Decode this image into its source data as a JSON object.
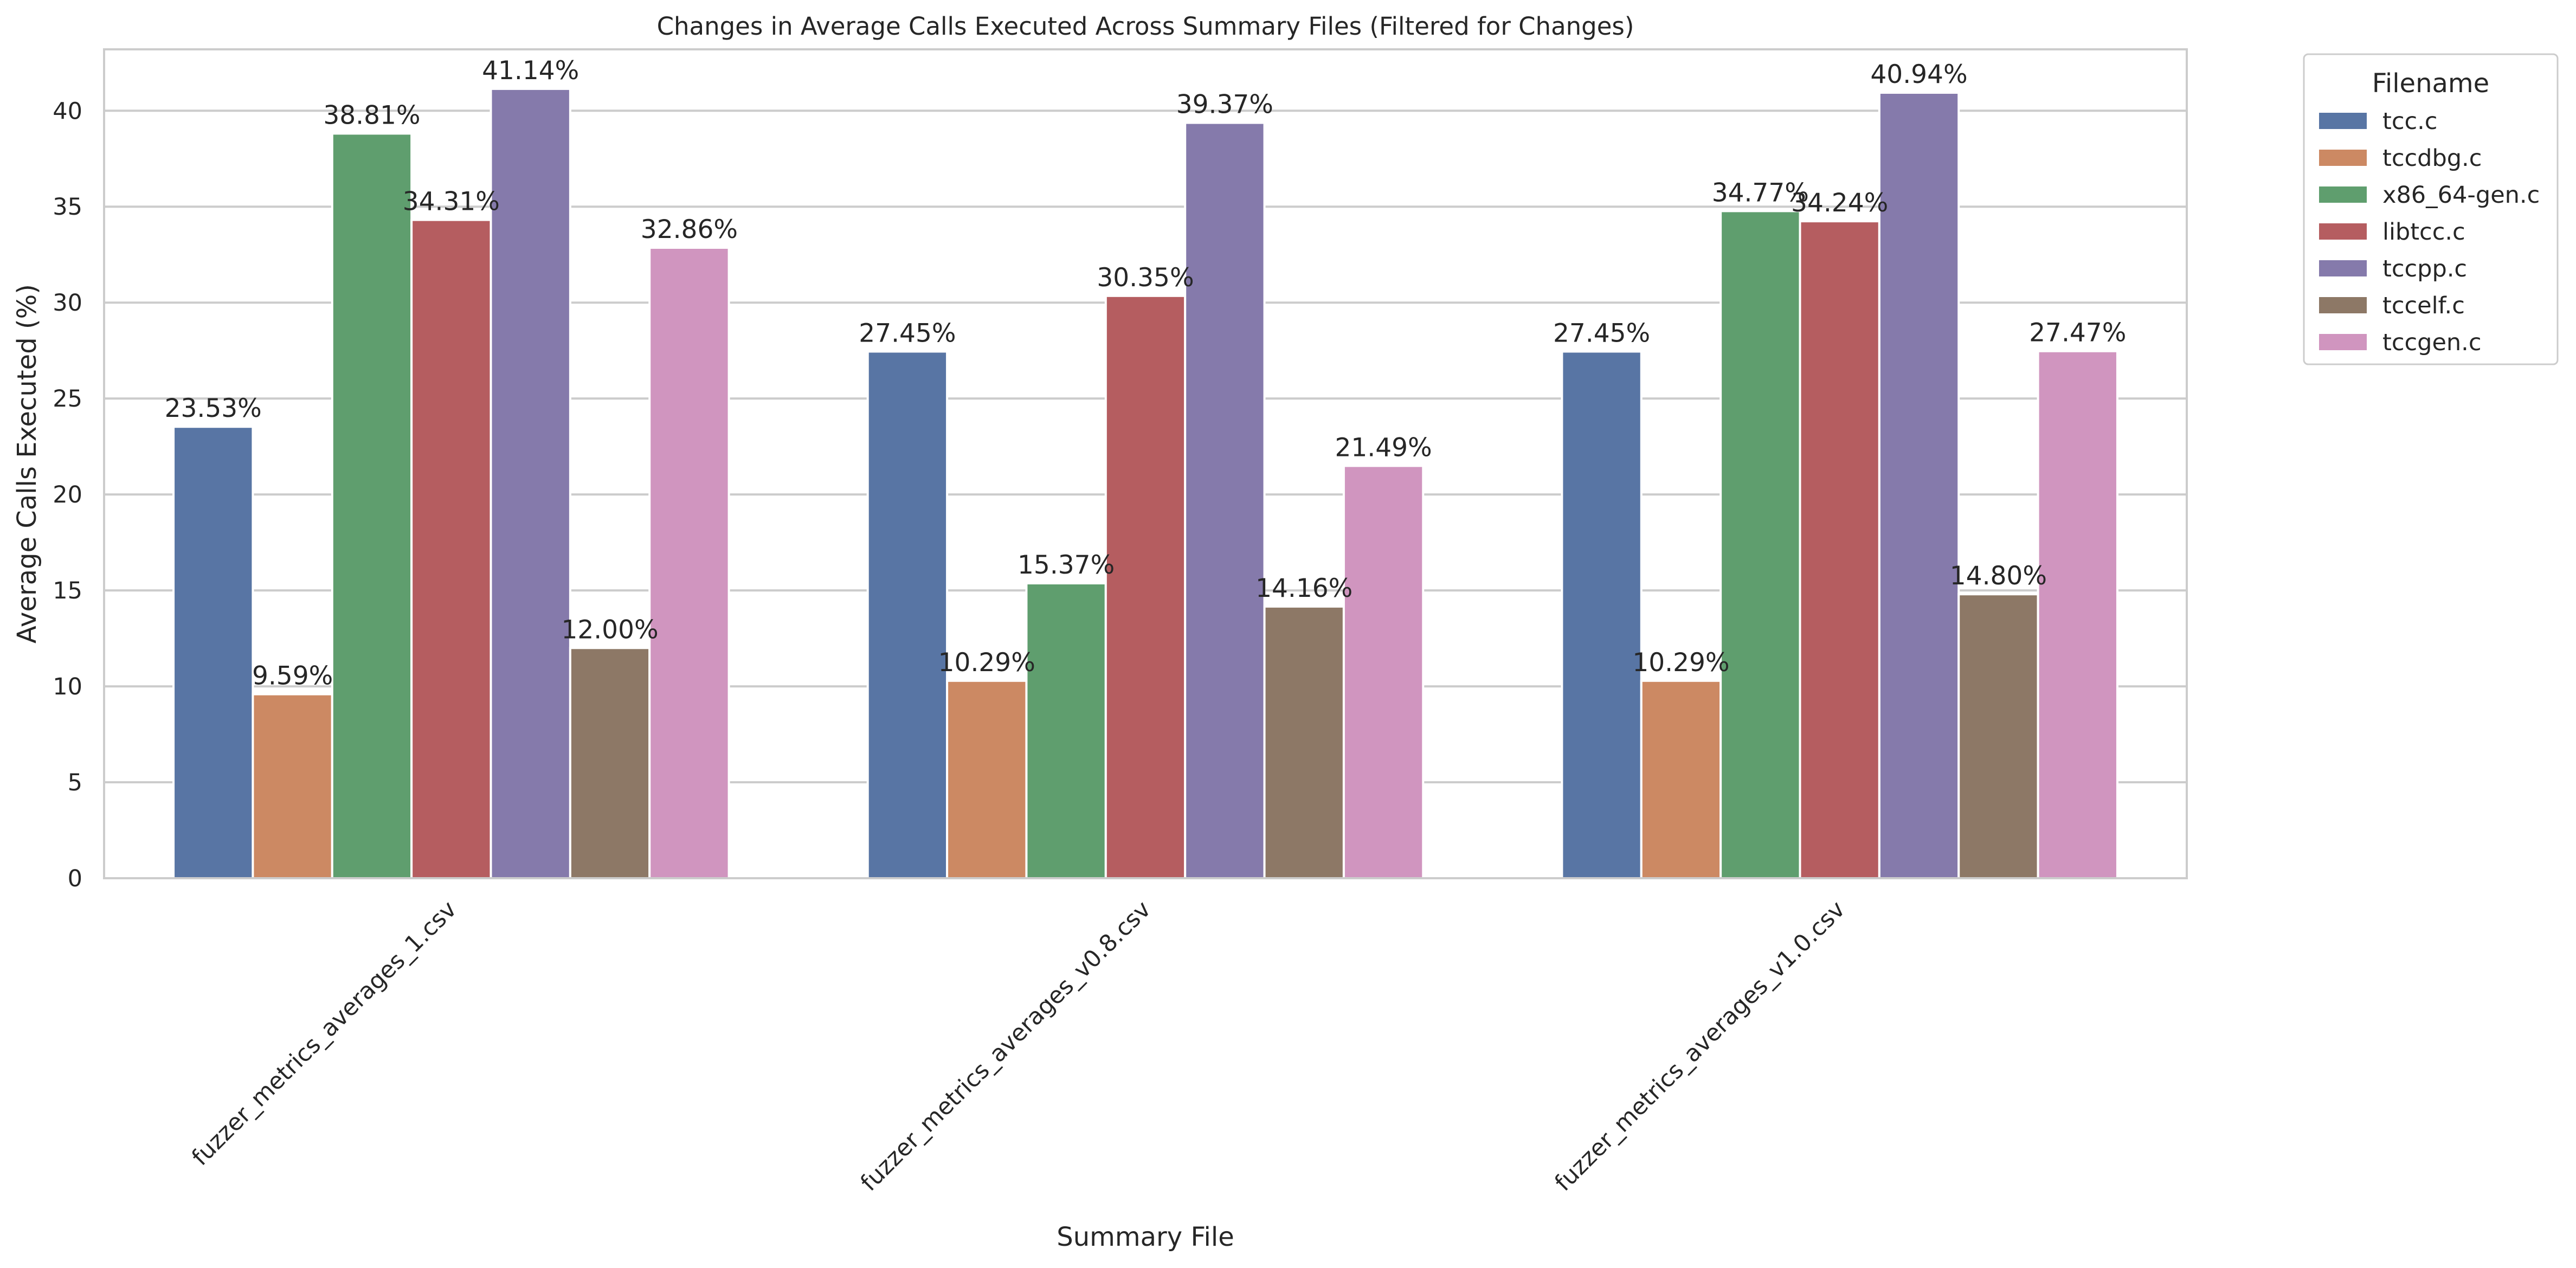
{
  "chart_data": {
    "type": "bar",
    "title": "Changes in Average Calls Executed Across Summary Files (Filtered for Changes)",
    "xlabel": "Summary File",
    "ylabel": "Average Calls Executed (%)",
    "ylim": [
      0,
      43.2
    ],
    "yticks": [
      0,
      5,
      10,
      15,
      20,
      25,
      30,
      35,
      40
    ],
    "grid": "horizontal",
    "legend": {
      "title": "Filename",
      "placement": "outside-top-right"
    },
    "categories": [
      "fuzzer_metrics_averages_1.csv",
      "fuzzer_metrics_averages_v0.8.csv",
      "fuzzer_metrics_averages_v1.0.csv"
    ],
    "series": [
      {
        "name": "tcc.c",
        "color": "#5875a4",
        "values": [
          23.53,
          27.45,
          27.45
        ],
        "labels": [
          "23.53%",
          "27.45%",
          "27.45%"
        ]
      },
      {
        "name": "tccdbg.c",
        "color": "#cc8963",
        "values": [
          9.59,
          10.29,
          10.29
        ],
        "labels": [
          "9.59%",
          "10.29%",
          "10.29%"
        ]
      },
      {
        "name": "x86_64-gen.c",
        "color": "#5f9e6e",
        "values": [
          38.81,
          15.37,
          34.77
        ],
        "labels": [
          "38.81%",
          "15.37%",
          "34.77%"
        ]
      },
      {
        "name": "libtcc.c",
        "color": "#b55d60",
        "values": [
          34.31,
          30.35,
          34.24
        ],
        "labels": [
          "34.31%",
          "30.35%",
          "34.24%"
        ]
      },
      {
        "name": "tccpp.c",
        "color": "#857aab",
        "values": [
          41.14,
          39.37,
          40.94
        ],
        "labels": [
          "41.14%",
          "39.37%",
          "40.94%"
        ]
      },
      {
        "name": "tccelf.c",
        "color": "#8d7866",
        "values": [
          12.0,
          14.16,
          14.8
        ],
        "labels": [
          "12.00%",
          "14.16%",
          "14.80%"
        ]
      },
      {
        "name": "tccgen.c",
        "color": "#d095bf",
        "values": [
          32.86,
          21.49,
          27.47
        ],
        "labels": [
          "32.86%",
          "21.49%",
          "27.47%"
        ]
      }
    ]
  }
}
